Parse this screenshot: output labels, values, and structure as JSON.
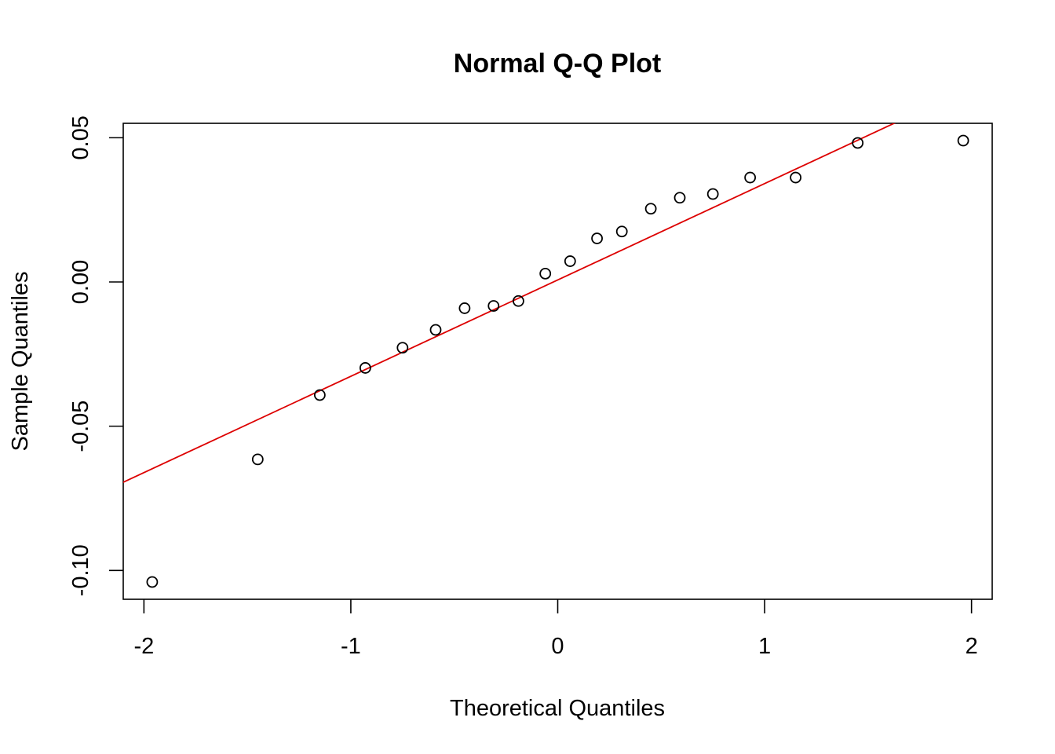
{
  "chart_data": {
    "type": "scatter",
    "title": "Normal Q-Q Plot",
    "xlabel": "Theoretical Quantiles",
    "ylabel": "Sample Quantiles",
    "xlim": [
      -2.1,
      2.1
    ],
    "ylim": [
      -0.11,
      0.055
    ],
    "x_ticks": [
      -2,
      -1,
      0,
      1,
      2
    ],
    "x_tick_labels": [
      "-2",
      "-1",
      "0",
      "1",
      "2"
    ],
    "y_ticks": [
      -0.1,
      -0.05,
      0.0,
      0.05
    ],
    "y_tick_labels": [
      "-0.10",
      "-0.05",
      "0.00",
      "0.05"
    ],
    "grid": false,
    "points": {
      "x": [
        -1.96,
        -1.45,
        -1.15,
        -0.93,
        -0.75,
        -0.59,
        -0.45,
        -0.31,
        -0.19,
        -0.06,
        0.06,
        0.19,
        0.31,
        0.45,
        0.59,
        0.75,
        0.93,
        1.15,
        1.45,
        1.96
      ],
      "y": [
        -0.104,
        -0.0615,
        -0.0392,
        -0.0298,
        -0.0228,
        -0.0166,
        -0.0091,
        -0.0083,
        -0.0066,
        0.0029,
        0.0072,
        0.0151,
        0.0175,
        0.0254,
        0.0292,
        0.0305,
        0.0362,
        0.0362,
        0.0482,
        0.049
      ]
    },
    "reference_line": {
      "intercept": 0.0007,
      "slope": 0.0334,
      "color": "#dd0000"
    }
  }
}
